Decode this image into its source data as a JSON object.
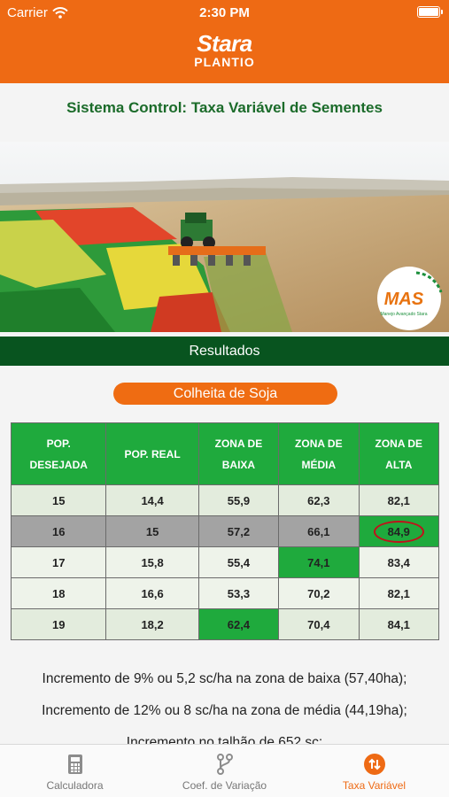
{
  "status_bar": {
    "carrier": "Carrier",
    "time": "2:30 PM"
  },
  "header": {
    "logo": "Stara",
    "subtitle": "PLANTIO"
  },
  "page_title": "Sistema Control: Taxa Variável de Sementes",
  "hero": {
    "badge_text": "MAS",
    "badge_subtext": "Manejo Avançado Stara"
  },
  "results_title": "Resultados",
  "crop_label": "Colheita de Soja",
  "table": {
    "headers": [
      [
        "POP.",
        "DESEJADA"
      ],
      [
        "POP. REAL"
      ],
      [
        "ZONA DE",
        "BAIXA"
      ],
      [
        "ZONA DE",
        "MÉDIA"
      ],
      [
        "ZONA DE",
        "ALTA"
      ]
    ],
    "rows": [
      [
        "15",
        "14,4",
        "55,9",
        "62,3",
        "82,1"
      ],
      [
        "16",
        "15",
        "57,2",
        "66,1",
        "84,9"
      ],
      [
        "17",
        "15,8",
        "55,4",
        "74,1",
        "83,4"
      ],
      [
        "18",
        "16,6",
        "53,3",
        "70,2",
        "82,1"
      ],
      [
        "19",
        "18,2",
        "62,4",
        "70,4",
        "84,1"
      ]
    ]
  },
  "notes": [
    "Incremento de 9% ou 5,2 sc/ha na zona de baixa (57,40ha);",
    "Incremento de 12% ou 8 sc/ha na zona de média (44,19ha);",
    "Incremento no talhão de 652 sc;"
  ],
  "tabs": [
    {
      "label": "Calculadora",
      "icon": "calculator-icon"
    },
    {
      "label": "Coef. de Variação",
      "icon": "branch-icon"
    },
    {
      "label": "Taxa Variável",
      "icon": "swap-arrows-icon"
    }
  ],
  "colors": {
    "brand_orange": "#ee6a14",
    "dark_green": "#08541f",
    "table_green": "#1faa3d",
    "title_green": "#1b6b2a"
  }
}
